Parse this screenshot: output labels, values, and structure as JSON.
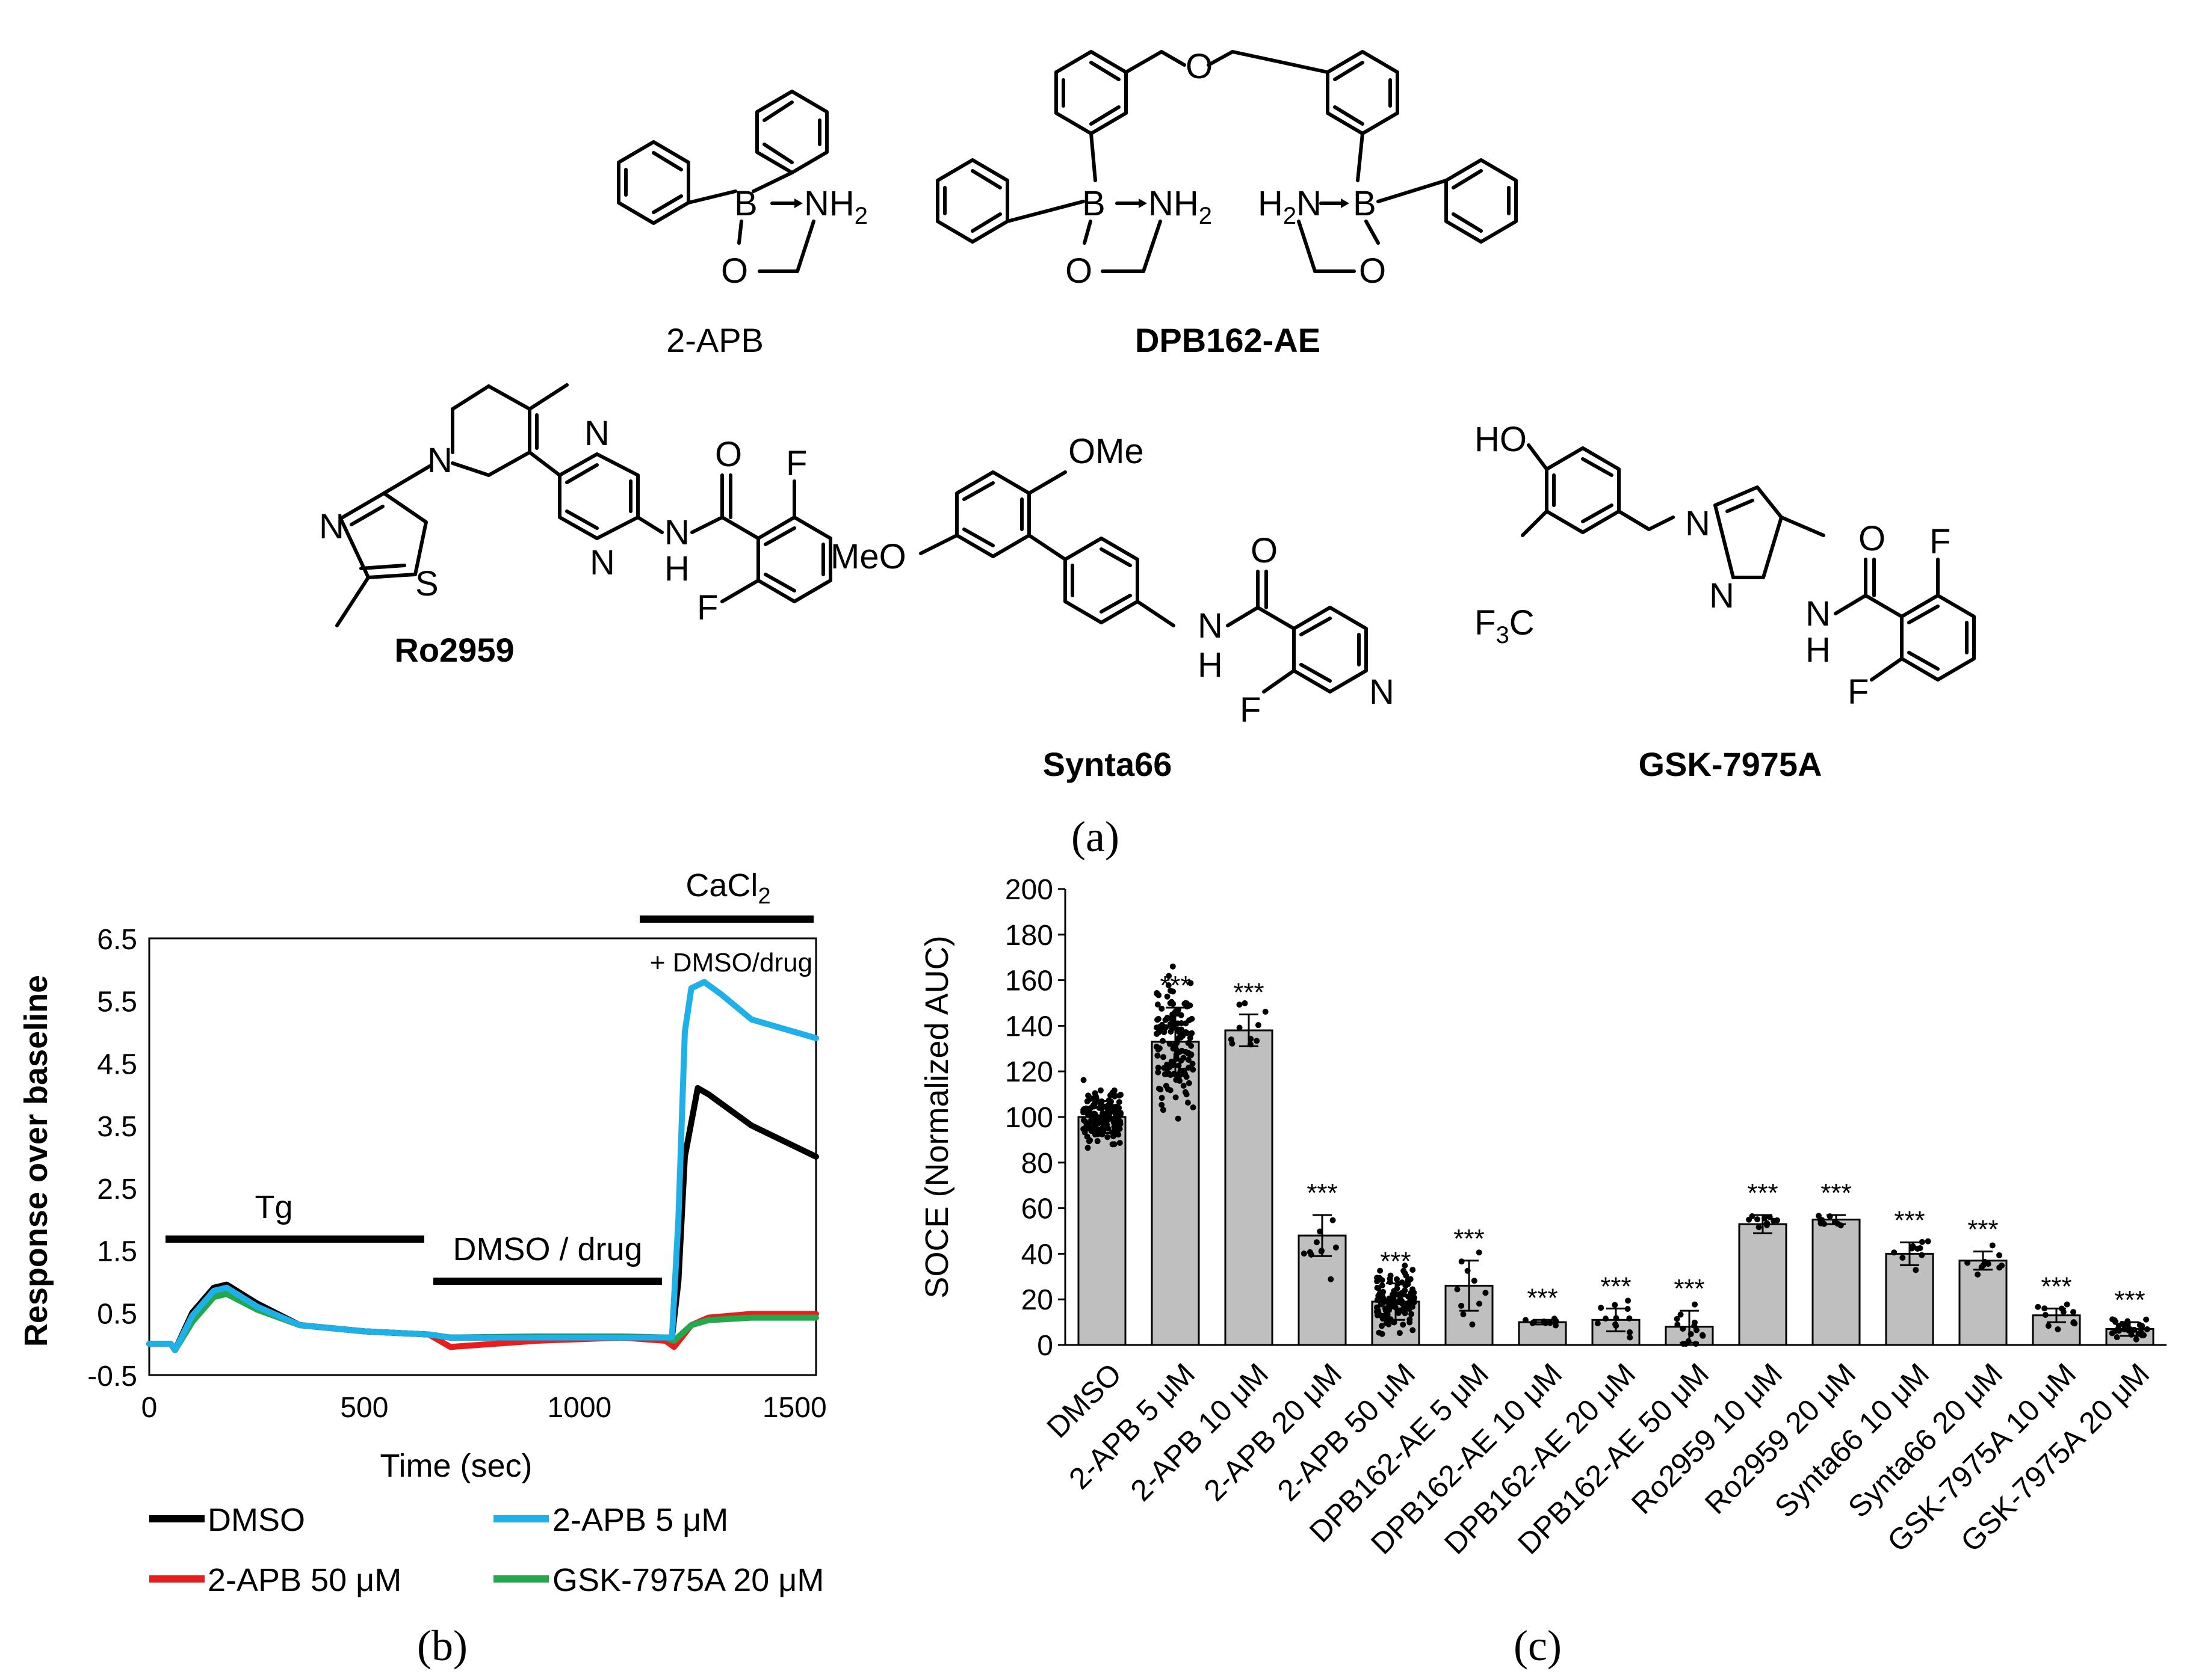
{
  "panel_labels": {
    "a": "(a)",
    "b": "(b)",
    "c": "(c)"
  },
  "structures": {
    "twoapb": {
      "name": "2-APB",
      "B": "B",
      "N": "NH",
      "N_sub": "2",
      "O": "O"
    },
    "dpb162": {
      "name": "DPB162-AE",
      "B": "B",
      "N": "NH",
      "N_sub": "2",
      "O": "O",
      "O_ether": "O",
      "N2": "H",
      "N2_sub": "2",
      "N2_tail": "N"
    },
    "ro2959": {
      "name": "Ro2959",
      "N_ring": "N",
      "S": "S",
      "N_thz": "N",
      "N_pz": "N",
      "NH": "N",
      "H": "H",
      "O": "O",
      "F": "F"
    },
    "synta66": {
      "name": "Synta66",
      "OMe": "OMe",
      "MeO": "MeO",
      "NH": "N",
      "H": "H",
      "O": "O",
      "F": "F",
      "N_py": "N"
    },
    "gsk": {
      "name": "GSK-7975A",
      "HO": "HO",
      "CF3_pre": "F",
      "CF3_sub": "3",
      "CF3_post": "C",
      "N1": "N",
      "N2": "N",
      "NH": "N",
      "H": "H",
      "O": "O",
      "F": "F"
    }
  },
  "chart_data": [
    {
      "type": "line",
      "ylabel": "Response over baseline",
      "xlabel": "Time (sec)",
      "xlim": [
        0,
        1550
      ],
      "ylim": [
        -0.5,
        6.5
      ],
      "xticks": [
        "0",
        "500",
        "1000",
        "1500"
      ],
      "yticks": [
        "6.5",
        "5.5",
        "4.5",
        "3.5",
        "2.5",
        "1.5",
        "0.5",
        "-0.5"
      ],
      "annotations": {
        "tg": "Tg",
        "drug": "DMSO / drug",
        "cacl_main": "CaCl",
        "cacl_sub": "2",
        "cacl_extra": "+ DMSO/drug"
      },
      "legend_placement": "bottom",
      "series": [
        {
          "name": "DMSO",
          "color": "#000000",
          "x": [
            0,
            50,
            60,
            100,
            150,
            180,
            250,
            350,
            500,
            650,
            700,
            900,
            1100,
            1215,
            1230,
            1245,
            1275,
            1300,
            1400,
            1550
          ],
          "y": [
            0.0,
            0.0,
            -0.1,
            0.5,
            0.9,
            0.95,
            0.65,
            0.3,
            0.2,
            0.15,
            0.1,
            0.1,
            0.1,
            0.1,
            1.0,
            3.0,
            4.1,
            4.0,
            3.5,
            3.0
          ]
        },
        {
          "name": "2-APB 5 μM",
          "color": "#1fb0e8",
          "x": [
            0,
            50,
            60,
            100,
            150,
            180,
            250,
            350,
            500,
            650,
            700,
            900,
            1100,
            1215,
            1230,
            1245,
            1260,
            1290,
            1330,
            1400,
            1550
          ],
          "y": [
            0.0,
            0.0,
            -0.1,
            0.45,
            0.85,
            0.9,
            0.6,
            0.3,
            0.2,
            0.15,
            0.1,
            0.1,
            0.1,
            0.1,
            2.0,
            5.0,
            5.7,
            5.8,
            5.6,
            5.2,
            4.9
          ]
        },
        {
          "name": "2-APB 50 μM",
          "color": "#e61e1e",
          "x": [
            0,
            50,
            60,
            100,
            150,
            180,
            250,
            350,
            500,
            650,
            700,
            900,
            1100,
            1200,
            1220,
            1260,
            1300,
            1400,
            1550
          ],
          "y": [
            0.0,
            0.0,
            -0.1,
            0.4,
            0.8,
            0.85,
            0.55,
            0.3,
            0.2,
            0.15,
            -0.05,
            0.05,
            0.1,
            0.05,
            -0.05,
            0.3,
            0.42,
            0.48,
            0.48
          ]
        },
        {
          "name": "GSK-7975A 20 μM",
          "color": "#24a84c",
          "x": [
            0,
            50,
            60,
            100,
            150,
            180,
            250,
            350,
            500,
            650,
            700,
            900,
            1100,
            1200,
            1220,
            1260,
            1300,
            1400,
            1550
          ],
          "y": [
            0.0,
            0.0,
            -0.1,
            0.35,
            0.75,
            0.8,
            0.55,
            0.3,
            0.2,
            0.15,
            0.1,
            0.12,
            0.12,
            0.1,
            0.05,
            0.3,
            0.38,
            0.42,
            0.42
          ]
        }
      ]
    },
    {
      "type": "bar",
      "ylabel": "SOCE (Normalized AUC)",
      "ylim": [
        0,
        200
      ],
      "yticks": [
        "0",
        "20",
        "40",
        "60",
        "80",
        "100",
        "120",
        "140",
        "160",
        "180",
        "200"
      ],
      "categories": [
        "DMSO",
        "2-APB 5 μM",
        "2-APB 10 μM",
        "2-APB 20 μM",
        "2-APB 50 μM",
        "DPB162-AE 5 μM",
        "DPB162-AE 10 μM",
        "DPB162-AE 20 μM",
        "DPB162-AE 50 μM",
        "Ro2959 10 μM",
        "Ro2959 20 μM",
        "Synta66 10 μM",
        "Synta66 20 μM",
        "GSK-7975A 10 μM",
        "GSK-7975A 20 μM"
      ],
      "values": [
        100,
        133,
        138,
        48,
        19,
        26,
        10,
        11,
        8,
        53,
        55,
        40,
        37,
        13,
        7
      ],
      "errors": [
        7,
        15,
        7,
        9,
        8,
        11,
        1,
        5,
        7,
        4,
        2,
        5,
        4,
        3,
        3
      ],
      "significance": [
        "",
        "***",
        "***",
        "***",
        "***",
        "***",
        "***",
        "***",
        "***",
        "***",
        "***",
        "***",
        "***",
        "***",
        "***"
      ],
      "point_counts": [
        160,
        140,
        10,
        10,
        120,
        10,
        10,
        12,
        15,
        10,
        10,
        10,
        10,
        12,
        30
      ],
      "bar_color": "#bfbfbf"
    }
  ]
}
